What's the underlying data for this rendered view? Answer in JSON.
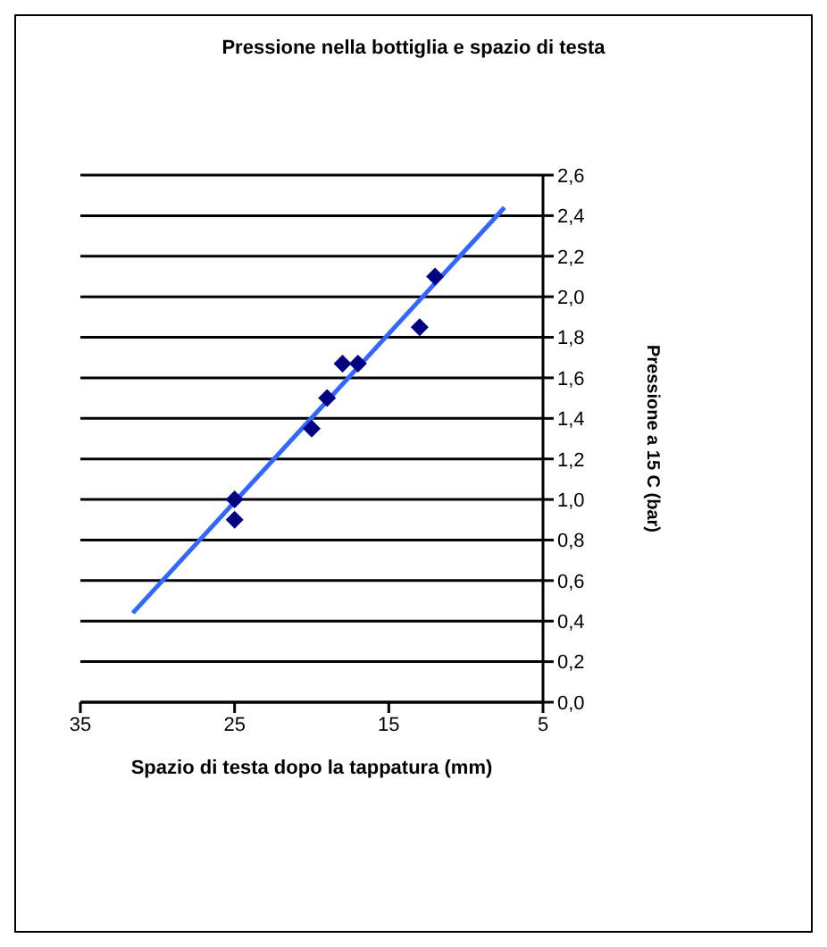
{
  "chart_data": {
    "type": "scatter",
    "title": "Pressione nella bottiglia e spazio di testa",
    "xlabel": "Spazio di testa dopo la tappatura (mm)",
    "ylabel": "Pressione a 15 C (bar)",
    "x": [
      25,
      25,
      20,
      19,
      18,
      17,
      13,
      12
    ],
    "series": [
      {
        "color": "#000080",
        "values": [
          1.0,
          0.9,
          1.35,
          1.5,
          1.67,
          1.67,
          1.85,
          2.1
        ],
        "marker": "diamond"
      },
      {
        "type": "line",
        "color": "#3366ff",
        "x": [
          31.6,
          7.5
        ],
        "values": [
          0.44,
          2.44
        ],
        "marker": "none"
      }
    ],
    "xlim": [
      35,
      5
    ],
    "xticks": [
      35,
      25,
      15,
      5
    ],
    "ylim": [
      0,
      2.6
    ],
    "yticks": [
      {
        "value": 0,
        "label": "0,0"
      },
      {
        "value": 0.2,
        "label": "0,2"
      },
      {
        "value": 0.4,
        "label": "0,4"
      },
      {
        "value": 0.6,
        "label": "0,6"
      },
      {
        "value": 0.8,
        "label": "0,8"
      },
      {
        "value": 1.0,
        "label": "1,0"
      },
      {
        "value": 1.2,
        "label": "1,2"
      },
      {
        "value": 1.4,
        "label": "1,4"
      },
      {
        "value": 1.6,
        "label": "1,6"
      },
      {
        "value": 1.8,
        "label": "1,8"
      },
      {
        "value": 2.0,
        "label": "2,0"
      },
      {
        "value": 2.2,
        "label": "2,2"
      },
      {
        "value": 2.4,
        "label": "2,4"
      },
      {
        "value": 2.6,
        "label": "2,6"
      }
    ],
    "grid": "y",
    "legend": false
  }
}
